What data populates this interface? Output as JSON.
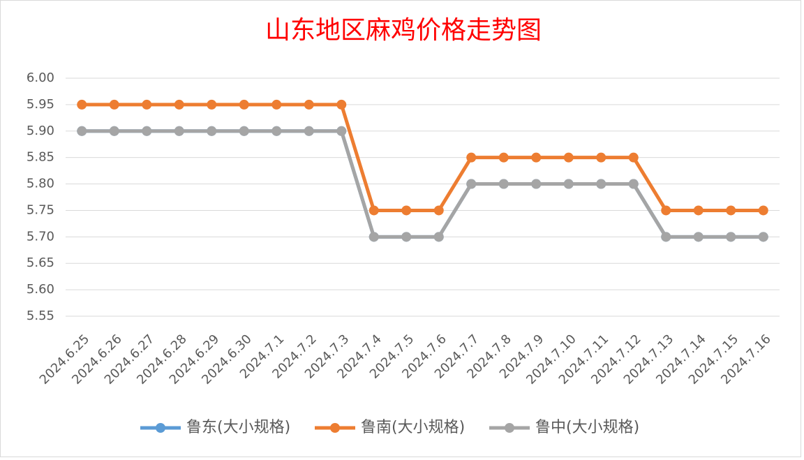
{
  "chart_data": {
    "type": "line",
    "title": "山东地区麻鸡价格走势图",
    "categories": [
      "2024.6.25",
      "2024.6.26",
      "2024.6.27",
      "2024.6.28",
      "2024.6.29",
      "2024.6.30",
      "2024.7.1",
      "2024.7.2",
      "2024.7.3",
      "2024.7.4",
      "2024.7.5",
      "2024.7.6",
      "2024.7.7",
      "2024.7.8",
      "2024.7.9",
      "2024.7.10",
      "2024.7.11",
      "2024.7.12",
      "2024.7.13",
      "2024.7.14",
      "2024.7.15",
      "2024.7.16"
    ],
    "series": [
      {
        "name": "鲁东(大小规格)",
        "color": "#5b9bd5",
        "values": [
          5.9,
          5.9,
          5.9,
          5.9,
          5.9,
          5.9,
          5.9,
          5.9,
          5.9,
          5.7,
          5.7,
          5.7,
          5.8,
          5.8,
          5.8,
          5.8,
          5.8,
          5.8,
          5.7,
          5.7,
          5.7,
          5.7
        ]
      },
      {
        "name": "鲁南(大小规格)",
        "color": "#ed7d31",
        "values": [
          5.95,
          5.95,
          5.95,
          5.95,
          5.95,
          5.95,
          5.95,
          5.95,
          5.95,
          5.75,
          5.75,
          5.75,
          5.85,
          5.85,
          5.85,
          5.85,
          5.85,
          5.85,
          5.75,
          5.75,
          5.75,
          5.75
        ]
      },
      {
        "name": "鲁中(大小规格)",
        "color": "#a5a5a5",
        "values": [
          5.9,
          5.9,
          5.9,
          5.9,
          5.9,
          5.9,
          5.9,
          5.9,
          5.9,
          5.7,
          5.7,
          5.7,
          5.8,
          5.8,
          5.8,
          5.8,
          5.8,
          5.8,
          5.7,
          5.7,
          5.7,
          5.7
        ]
      }
    ],
    "ylim": [
      5.55,
      6.0
    ],
    "yticks": [
      {
        "value": 5.55,
        "label": "5.55"
      },
      {
        "value": 5.6,
        "label": "5.60"
      },
      {
        "value": 5.65,
        "label": "5.65"
      },
      {
        "value": 5.7,
        "label": "5.70"
      },
      {
        "value": 5.75,
        "label": "5.75"
      },
      {
        "value": 5.8,
        "label": "5.80"
      },
      {
        "value": 5.85,
        "label": "5.85"
      },
      {
        "value": 5.9,
        "label": "5.90"
      },
      {
        "value": 5.95,
        "label": "5.95"
      },
      {
        "value": 6,
        "label": "6.00"
      }
    ],
    "grid": true,
    "legend": "bottom"
  }
}
